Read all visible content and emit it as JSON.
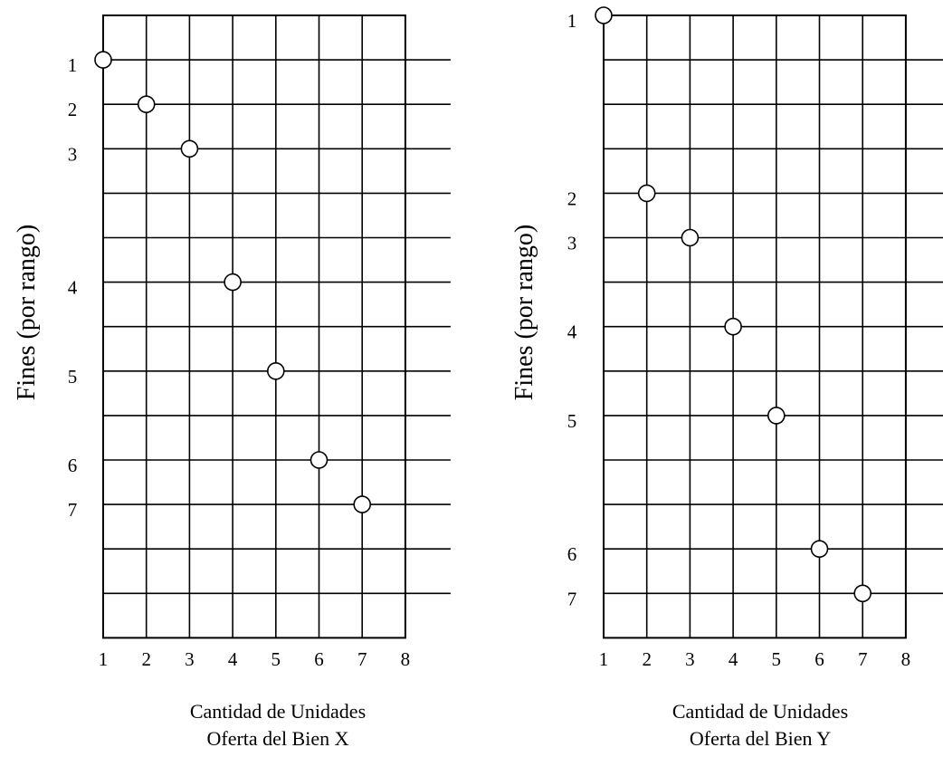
{
  "chart_data": [
    {
      "type": "scatter",
      "ylabel": "Fines (por  rango)",
      "xlabel_lines": [
        "Cantidad de Unidades",
        "Oferta del Bien X"
      ],
      "x_ticks": [
        "1",
        "2",
        "3",
        "4",
        "5",
        "6",
        "7",
        "8"
      ],
      "points": [
        {
          "x": 1,
          "y": 1,
          "label": "1"
        },
        {
          "x": 2,
          "y": 2,
          "label": "2"
        },
        {
          "x": 3,
          "y": 3,
          "label": "3"
        },
        {
          "x": 4,
          "y": 4,
          "label": "4"
        },
        {
          "x": 5,
          "y": 5,
          "label": "5"
        },
        {
          "x": 6,
          "y": 6,
          "label": "6"
        },
        {
          "x": 7,
          "y": 7,
          "label": "7"
        }
      ],
      "grid": true,
      "marker": "open-circle"
    },
    {
      "type": "scatter",
      "ylabel": "Fines (por  rango)",
      "xlabel_lines": [
        "Cantidad de Unidades",
        "Oferta del Bien Y"
      ],
      "x_ticks": [
        "1",
        "2",
        "3",
        "4",
        "5",
        "6",
        "7",
        "8"
      ],
      "points": [
        {
          "x": 1,
          "y": 1,
          "label": "1"
        },
        {
          "x": 2,
          "y": 2,
          "label": "2"
        },
        {
          "x": 3,
          "y": 3,
          "label": "3"
        },
        {
          "x": 4,
          "y": 4,
          "label": "4"
        },
        {
          "x": 5,
          "y": 5,
          "label": "5"
        },
        {
          "x": 6,
          "y": 6,
          "label": "6"
        },
        {
          "x": 7,
          "y": 7,
          "label": "7"
        }
      ],
      "grid": true,
      "marker": "open-circle"
    }
  ]
}
